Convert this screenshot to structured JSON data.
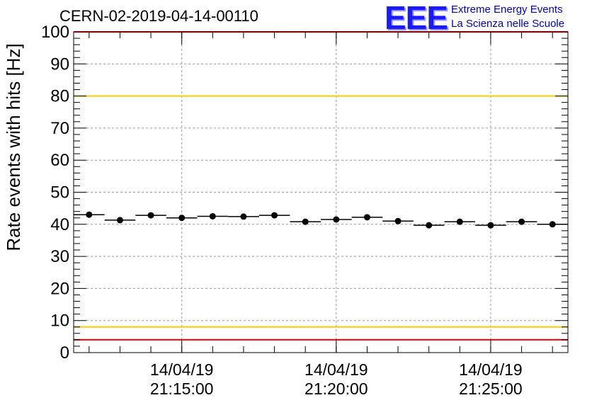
{
  "header": {
    "title": "CERN-02-2019-04-14-00110",
    "logo_letters": "EEE",
    "logo_line1": "Extreme Energy Events",
    "logo_line2": "La Scienza nelle Scuole"
  },
  "chart_data": {
    "type": "scatter",
    "title": "CERN-02-2019-04-14-00110",
    "ylabel": "Rate events with hits [Hz]",
    "xlabel": "",
    "ylim": [
      0,
      100
    ],
    "yticks": [
      0,
      10,
      20,
      30,
      40,
      50,
      60,
      70,
      80,
      90,
      100
    ],
    "grid": true,
    "xtick_labels": [
      {
        "date": "14/04/19",
        "time": "21:15:00"
      },
      {
        "date": "14/04/19",
        "time": "21:20:00"
      },
      {
        "date": "14/04/19",
        "time": "21:25:00"
      }
    ],
    "xtick_times": [
      "21:15:00",
      "21:20:00",
      "21:25:00"
    ],
    "xlim": [
      "21:11:30",
      "21:27:30"
    ],
    "x": [
      "21:12:00",
      "21:13:00",
      "21:14:00",
      "21:15:00",
      "21:16:00",
      "21:17:00",
      "21:18:00",
      "21:19:00",
      "21:20:00",
      "21:21:00",
      "21:22:00",
      "21:23:00",
      "21:24:00",
      "21:25:00",
      "21:26:00",
      "21:27:00"
    ],
    "values": [
      43.0,
      41.3,
      42.8,
      42.0,
      42.5,
      42.4,
      42.8,
      40.8,
      41.5,
      42.2,
      41.0,
      39.7,
      40.8,
      39.7,
      40.8,
      40.0
    ],
    "bin_width_seconds": 60,
    "reference_lines": [
      {
        "y": 100,
        "color": "#ff0000"
      },
      {
        "y": 80,
        "color": "#ffcc00"
      },
      {
        "y": 8,
        "color": "#ffcc00"
      },
      {
        "y": 4,
        "color": "#ff0000"
      }
    ]
  }
}
